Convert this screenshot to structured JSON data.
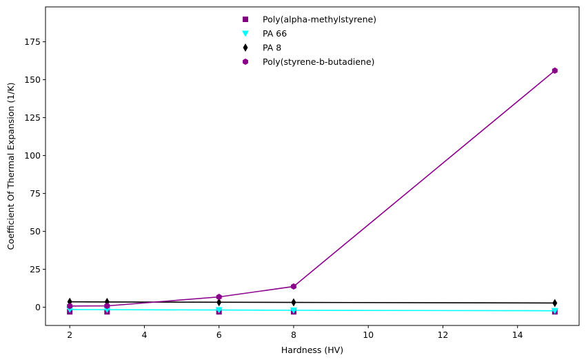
{
  "chart_data": {
    "type": "line",
    "xlabel": "Hardness (HV)",
    "ylabel": "Coefficient Of Thermal Expansion (1/K)",
    "xlim": [
      1.35,
      15.65
    ],
    "ylim": [
      -12,
      198
    ],
    "xticks": [
      2,
      4,
      6,
      8,
      10,
      12,
      14
    ],
    "yticks": [
      0,
      25,
      50,
      75,
      100,
      125,
      150,
      175
    ],
    "grid": false,
    "legend_position": "top-center",
    "x": [
      2,
      3,
      6,
      8,
      15
    ],
    "series": [
      {
        "name": "Poly(alpha-methylstyrene)",
        "marker": "square",
        "color": "#800080",
        "line": false,
        "values": [
          -3,
          -3,
          -3,
          -3,
          -3
        ]
      },
      {
        "name": "PA 66",
        "marker": "triangle-down",
        "color": "#00ffff",
        "line": true,
        "values": [
          -1.5,
          -1.6,
          -1.8,
          -2.0,
          -2.3
        ]
      },
      {
        "name": "PA 8",
        "marker": "diamond",
        "color": "#000000",
        "line": true,
        "values": [
          3.6,
          3.5,
          3.3,
          3.2,
          2.8
        ]
      },
      {
        "name": "Poly(styrene-b-butadiene)",
        "marker": "hexagon",
        "color": "#8b008b",
        "line": true,
        "values": [
          0.8,
          0.9,
          6.8,
          13.7,
          156
        ]
      }
    ]
  }
}
